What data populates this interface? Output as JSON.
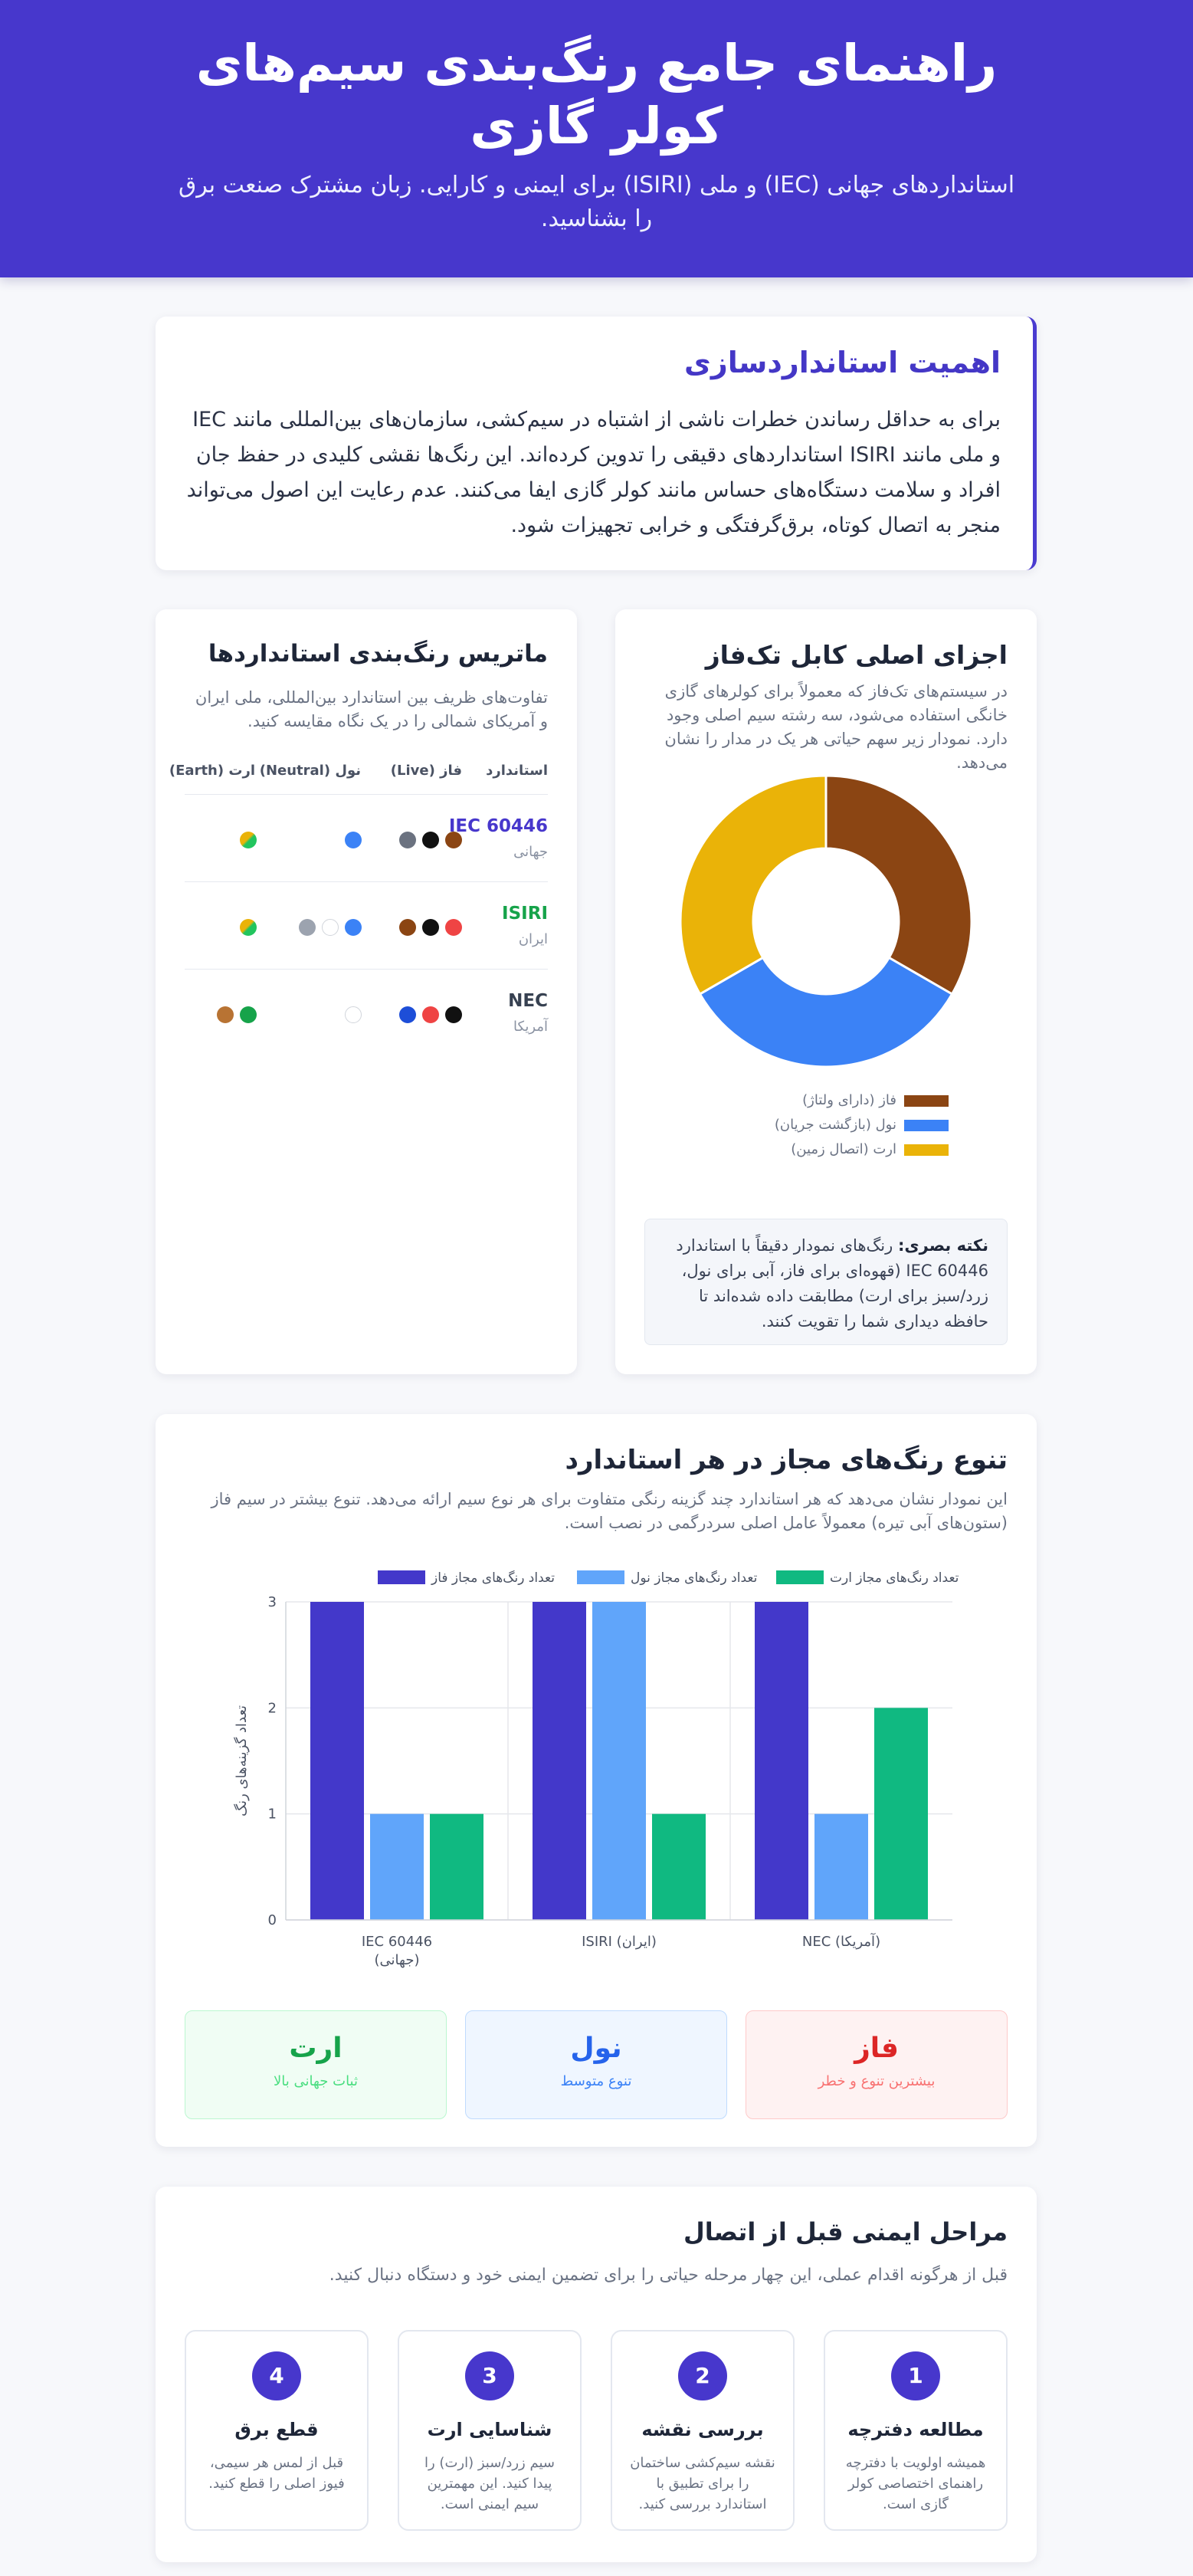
{
  "hero": {
    "title": "راهنمای جامع رنگ‌بندی سیم‌های کولر گازی",
    "subtitle": "استانداردهای جهانی (IEC) و ملی (ISIRI) برای ایمنی و کارایی. زبان مشترک صنعت برق را بشناسید."
  },
  "importance": {
    "title": "اهمیت استانداردسازی",
    "body": "برای به حداقل رساندن خطرات ناشی از اشتباه در سیم‌کشی، سازمان‌های بین‌المللی مانند IEC و ملی مانند ISIRI استانداردهای دقیقی را تدوین کرده‌اند. این رنگ‌ها نقشی کلیدی در حفظ جان افراد و سلامت دستگاه‌های حساس مانند کولر گازی ایفا می‌کنند. عدم رعایت این اصول می‌تواند منجر به اتصال کوتاه، برق‌گرفتگی و خرابی تجهیزات شود."
  },
  "components": {
    "title": "اجزای اصلی کابل تک‌فاز",
    "description": "در سیستم‌های تک‌فاز که معمولاً برای کولرهای گازی خانگی استفاده می‌شود، سه رشته سیم اصلی وجود دارد. نمودار زیر سهم حیاتی هر یک در مدار را نشان می‌دهد.",
    "note_label": "نکته بصری:",
    "note_text": " رنگ‌های نمودار دقیقاً با استاندارد IEC 60446 (قهوه‌ای برای فاز، آبی برای نول، زرد/سبز برای ارت) مطابقت داده شده‌اند تا حافظه دیداری شما را تقویت کنند."
  },
  "donut_data": {
    "type": "pie",
    "labels": [
      "فاز (دارای ولتاژ)",
      "نول (بازگشت جریان)",
      "ارت (اتصال زمین)"
    ],
    "values": [
      33.3,
      33.3,
      33.3
    ],
    "colors": [
      "#8b4513",
      "#3b82f6",
      "#eab308"
    ]
  },
  "matrix": {
    "title": "ماتریس رنگ‌بندی استانداردها",
    "description": "تفاوت‌های ظریف بین استاندارد بین‌المللی، ملی ایران و آمریکای شمالی را در یک نگاه مقایسه کنید.",
    "headers": [
      "استاندارد",
      "فاز (Live)",
      "نول (Neutral)",
      "ارت (Earth)"
    ],
    "rows": [
      {
        "name": "IEC 60446",
        "region": "جهانی",
        "color": "#4737cc",
        "live": [
          "#8b4513",
          "#111111",
          "#6b7280"
        ],
        "neutral": [
          "#3b82f6"
        ],
        "earth": [
          "grad"
        ]
      },
      {
        "name": "ISIRI",
        "region": "ایران",
        "color": "#16a34a",
        "live": [
          "#ef4444",
          "#111111",
          "#8b4513"
        ],
        "neutral": [
          "#3b82f6",
          "#ffffff",
          "#9ca3af"
        ],
        "earth": [
          "grad"
        ]
      },
      {
        "name": "NEC",
        "region": "آمریکا",
        "color": "#374151",
        "live": [
          "#111111",
          "#ef4444",
          "#1d4ed8"
        ],
        "neutral": [
          "#ffffff"
        ],
        "earth": [
          "#16a34a",
          "#b87333"
        ]
      }
    ]
  },
  "diversity": {
    "title": "تنوع رنگ‌های مجاز در هر استاندارد",
    "description": "این نمودار نشان می‌دهد که هر استاندارد چند گزینه رنگی متفاوت برای هر نوع سیم ارائه می‌دهد. تنوع بیشتر در سیم فاز (ستون‌های آبی تیره) معمولاً عامل اصلی سردرگمی در نصب است.",
    "summary": [
      {
        "title": "فاز",
        "sub": "بیشترین تنوع و خطر"
      },
      {
        "title": "نول",
        "sub": "تنوع متوسط"
      },
      {
        "title": "ارت",
        "sub": "ثبات جهانی بالا"
      }
    ]
  },
  "chart_data": {
    "type": "bar",
    "categories": [
      [
        "IEC 60446",
        "(جهانی)"
      ],
      [
        "ISIRI (ایران)"
      ],
      [
        "NEC (آمریکا)"
      ]
    ],
    "series": [
      {
        "name": "تعداد رنگ‌های مجاز فاز",
        "values": [
          3,
          3,
          3
        ],
        "color": "#4338ca"
      },
      {
        "name": "تعداد رنگ‌های مجاز نول",
        "values": [
          1,
          3,
          1
        ],
        "color": "#60a5fa"
      },
      {
        "name": "تعداد رنگ‌های مجاز ارت",
        "values": [
          1,
          1,
          2
        ],
        "color": "#10b981"
      }
    ],
    "ylabel": "تعداد گزینه‌های رنگ",
    "ylim": [
      0,
      3
    ],
    "yticks": [
      "0",
      "1",
      "2",
      "3"
    ],
    "legend": "top"
  },
  "steps": {
    "title": "مراحل ایمنی قبل از اتصال",
    "description": "قبل از هرگونه اقدام عملی، این چهار مرحله حیاتی را برای تضمین ایمنی خود و دستگاه دنبال کنید.",
    "items": [
      {
        "num": "1",
        "title": "مطالعه دفترچه",
        "text": "همیشه اولویت با دفترچه راهنمای اختصاصی کولر گازی است."
      },
      {
        "num": "2",
        "title": "بررسی نقشه",
        "text": "نقشه سیم‌کشی ساختمان را برای تطبیق با استاندارد بررسی کنید."
      },
      {
        "num": "3",
        "title": "شناسایی ارت",
        "text": "سیم زرد/سبز (ارت) را پیدا کنید. این مهمترین سیم ایمنی است."
      },
      {
        "num": "4",
        "title": "قطع برق",
        "text": "قبل از لمس هر سیمی، فیوز اصلی را قطع کنید."
      }
    ]
  }
}
